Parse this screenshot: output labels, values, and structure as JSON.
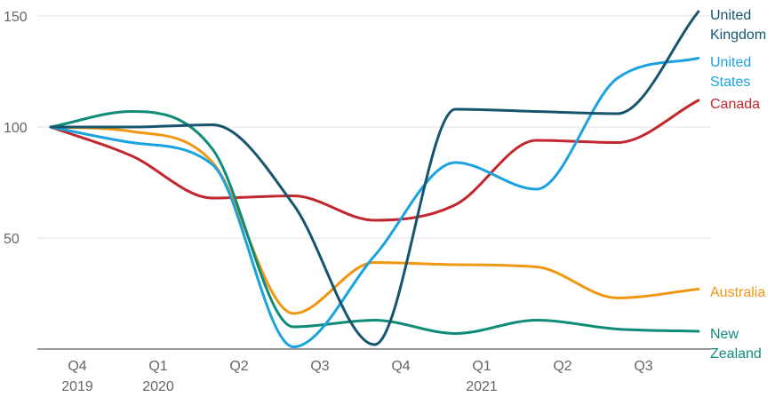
{
  "chart_data": {
    "type": "line",
    "title": "",
    "xlabel": "",
    "ylabel": "",
    "ylim": [
      0,
      150
    ],
    "y_ticks": [
      50,
      100,
      150
    ],
    "grid": true,
    "legend": "direct labels at line ends",
    "x_ticks": [
      {
        "quarter": "Q4",
        "year": "2019"
      },
      {
        "quarter": "Q1",
        "year": "2020"
      },
      {
        "quarter": "Q2",
        "year": ""
      },
      {
        "quarter": "Q3",
        "year": ""
      },
      {
        "quarter": "Q4",
        "year": ""
      },
      {
        "quarter": "Q1",
        "year": "2021"
      },
      {
        "quarter": "Q2",
        "year": ""
      },
      {
        "quarter": "Q3",
        "year": ""
      }
    ],
    "series": [
      {
        "name": "Canada",
        "label_lines": [
          "Canada"
        ],
        "color": "#c1272d",
        "values": [
          100,
          87,
          68,
          69,
          58,
          65,
          94,
          93,
          112
        ]
      },
      {
        "name": "Australia",
        "label_lines": [
          "Australia"
        ],
        "color": "#f0960f",
        "values": [
          100,
          98,
          84,
          16,
          39,
          38,
          37,
          23,
          27
        ]
      },
      {
        "name": "New Zealand",
        "label_lines": [
          "New",
          "Zealand"
        ],
        "color": "#0f8c78",
        "values": [
          100,
          107,
          90,
          10,
          13,
          7,
          13,
          9,
          8
        ]
      },
      {
        "name": "United States",
        "label_lines": [
          "United",
          "States"
        ],
        "color": "#1ba2e0",
        "values": [
          100,
          93,
          83,
          1,
          42,
          84,
          72,
          122,
          131
        ]
      },
      {
        "name": "United Kingdom",
        "label_lines": [
          "United",
          "Kingdom"
        ],
        "color": "#17556e",
        "values": [
          100,
          100,
          101,
          65,
          2,
          108,
          107,
          106,
          152
        ]
      }
    ]
  }
}
